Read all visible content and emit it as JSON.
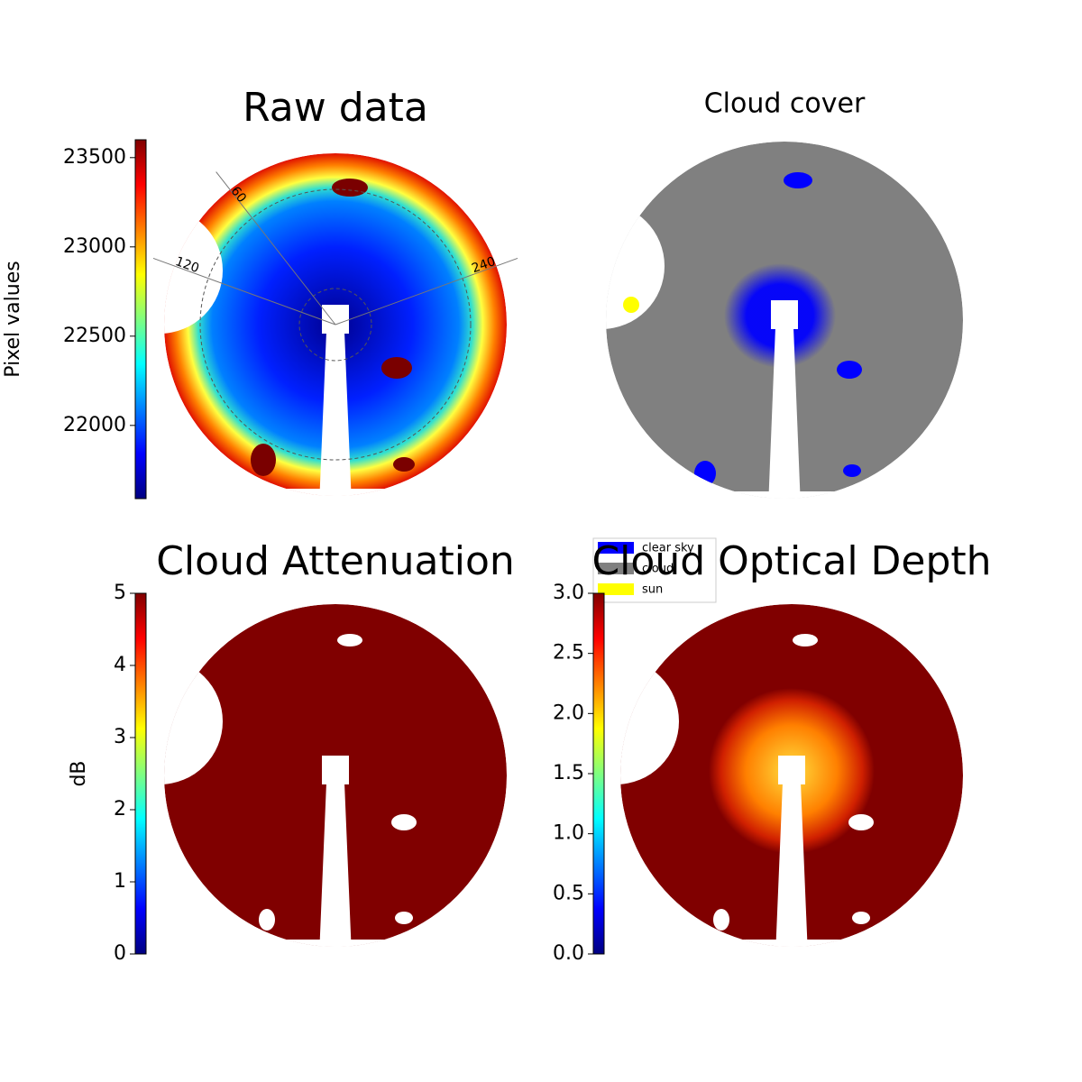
{
  "chart_data": [
    {
      "type": "image",
      "title": "Raw data",
      "colorbar": {
        "label": "Pixel values",
        "colormap": "jet",
        "lim": [
          21590,
          23600
        ],
        "ticks": [
          22000,
          22500,
          23000,
          23500
        ]
      },
      "polar_labels": [
        "120",
        "60",
        "240"
      ]
    },
    {
      "type": "image",
      "title": "Cloud cover",
      "series": [
        {
          "name": "clear sky",
          "color": "#0000ff"
        },
        {
          "name": "cloud",
          "color": "#808080"
        },
        {
          "name": "sun",
          "color": "#ffff00"
        }
      ]
    },
    {
      "type": "image",
      "title": "Cloud Attenuation",
      "colorbar": {
        "label": "dB",
        "colormap": "jet",
        "lim": [
          0,
          5
        ],
        "ticks": [
          0,
          1,
          2,
          3,
          4,
          5
        ]
      }
    },
    {
      "type": "image",
      "title": "Cloud Optical Depth",
      "colorbar": {
        "colormap": "jet",
        "lim": [
          0,
          3
        ],
        "ticks": [
          {
            "value": 0,
            "label": "0.0"
          },
          0.5,
          {
            "value": 1,
            "label": "1.0"
          },
          1.5,
          {
            "value": 2,
            "label": "2.0"
          },
          2.5,
          {
            "value": 3,
            "label": "3.0"
          }
        ]
      }
    }
  ]
}
